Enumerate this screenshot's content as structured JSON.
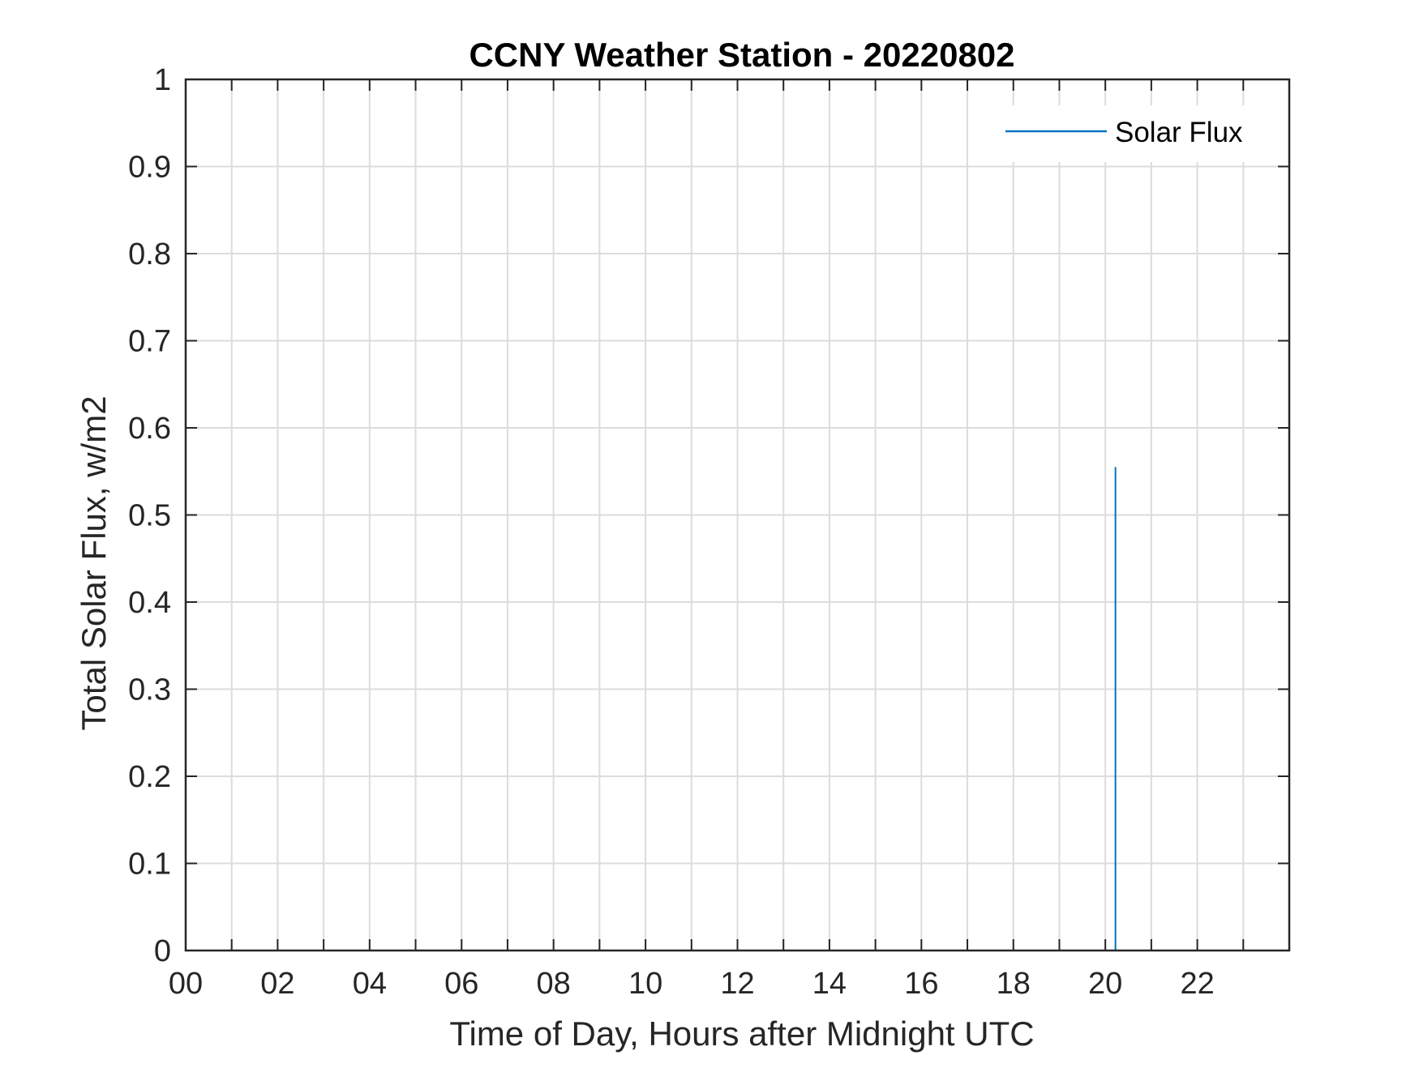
{
  "chart_data": {
    "type": "line",
    "title": "CCNY Weather Station - 20220802",
    "xlabel": "Time of Day, Hours after Midnight UTC",
    "ylabel": "Total Solar Flux, w/m2",
    "xlim": [
      0,
      24
    ],
    "ylim": [
      0,
      1
    ],
    "x_tick_values": [
      0,
      2,
      4,
      6,
      8,
      10,
      12,
      14,
      16,
      18,
      20,
      22
    ],
    "x_tick_labels": [
      "00",
      "02",
      "04",
      "06",
      "08",
      "10",
      "12",
      "14",
      "16",
      "18",
      "20",
      "22"
    ],
    "x_grid_step": 1,
    "y_tick_values": [
      0,
      0.1,
      0.2,
      0.3,
      0.4,
      0.5,
      0.6,
      0.7,
      0.8,
      0.9,
      1
    ],
    "y_tick_labels": [
      "0",
      "0.1",
      "0.2",
      "0.3",
      "0.4",
      "0.5",
      "0.6",
      "0.7",
      "0.8",
      "0.9",
      "1"
    ],
    "grid": true,
    "legend_position": "top-right",
    "series": [
      {
        "name": "Solar Flux",
        "color": "#0072BD",
        "x": [
          20.22,
          20.22
        ],
        "y": [
          0,
          0.555
        ]
      }
    ]
  }
}
